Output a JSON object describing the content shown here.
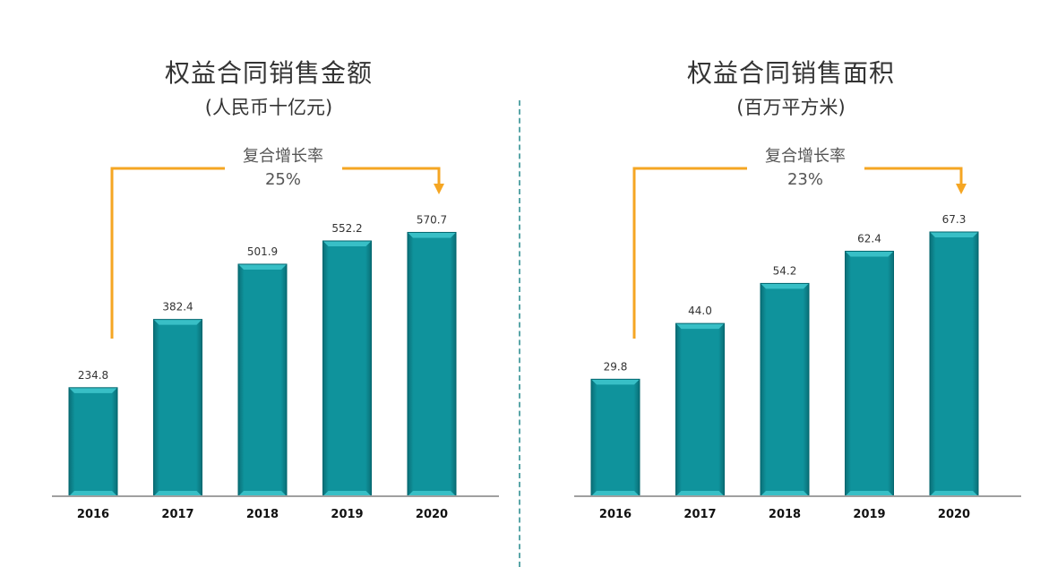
{
  "colors": {
    "bar": "#0f939c",
    "bar_highlight": "#38bfc6",
    "bar_dark": "#0a6f77",
    "arrow": "#f5a623",
    "axis": "#a0a0a0"
  },
  "chart_data": [
    {
      "type": "bar",
      "title": "权益合同销售金额",
      "subtitle": "(人民币十亿元)",
      "categories": [
        "2016",
        "2017",
        "2018",
        "2019",
        "2020"
      ],
      "values": [
        234.8,
        382.4,
        501.9,
        552.2,
        570.7
      ],
      "value_labels": [
        "234.8",
        "382.4",
        "501.9",
        "552.2",
        "570.7"
      ],
      "ylim": [
        0,
        620
      ],
      "grid": false,
      "annotation": {
        "label": "复合增长率",
        "value": "25%"
      }
    },
    {
      "type": "bar",
      "title": "权益合同销售面积",
      "subtitle": "(百万平方米)",
      "categories": [
        "2016",
        "2017",
        "2018",
        "2019",
        "2020"
      ],
      "values": [
        29.8,
        44.0,
        54.2,
        62.4,
        67.3
      ],
      "value_labels": [
        "29.8",
        "44.0",
        "54.2",
        "62.4",
        "67.3"
      ],
      "ylim": [
        0,
        73
      ],
      "grid": false,
      "annotation": {
        "label": "复合增长率",
        "value": "23%"
      }
    }
  ]
}
